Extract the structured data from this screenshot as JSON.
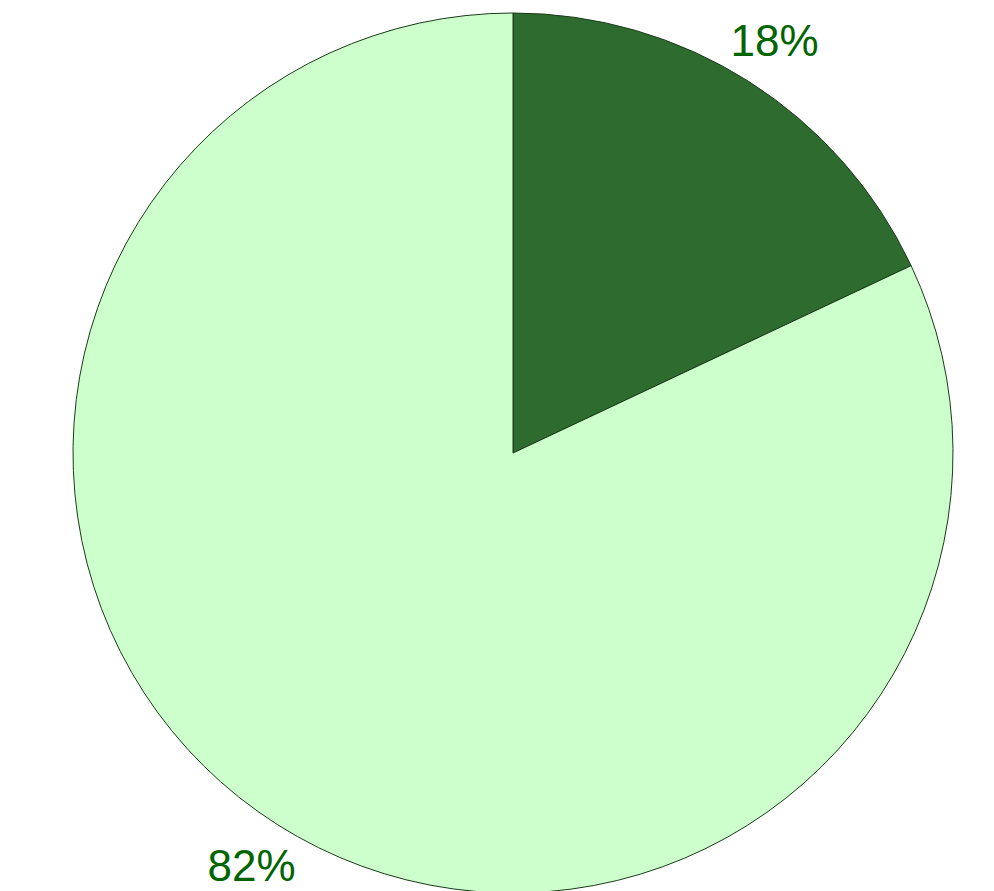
{
  "chart_data": {
    "type": "pie",
    "values": [
      18,
      82
    ],
    "value_labels": [
      "18%",
      "82%"
    ],
    "colors": [
      "#2e6b2e",
      "#ccffcc"
    ],
    "data_labels": true
  }
}
